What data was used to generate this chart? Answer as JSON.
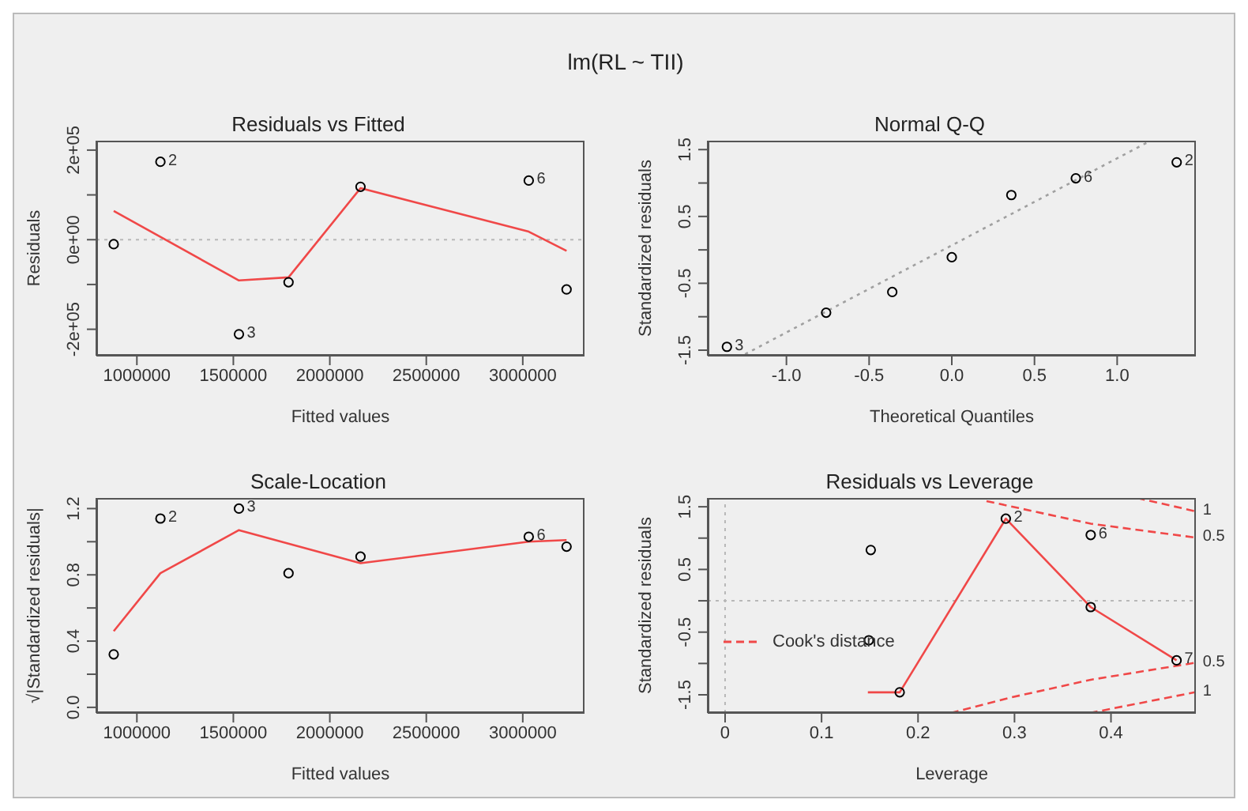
{
  "chart_data": [
    {
      "type": "scatter",
      "title": "Residuals vs Fitted",
      "xlabel": "Fitted values",
      "ylabel": "Residuals",
      "annotations": [
        "lm(RL ~ TII)",
        {
          "text": "2",
          "x": 1122000,
          "y": 174000
        },
        {
          "text": "3",
          "x": 1529000,
          "y": -211000
        },
        {
          "text": "6",
          "x": 3031000,
          "y": 132000
        }
      ],
      "xlim": [
        790000,
        3320000
      ],
      "xticks": [
        1000000,
        1500000,
        2000000,
        2500000,
        3000000
      ],
      "ylim": [
        -259000,
        221000
      ],
      "yticks": [
        {
          "value": -200000,
          "label": "-2e+05"
        },
        {
          "value": -100000,
          "label": null
        },
        {
          "value": 0,
          "label": "0e+00"
        },
        {
          "value": 100000,
          "label": null
        },
        {
          "value": 200000,
          "label": "2e+05"
        }
      ],
      "ref_lines": [
        {
          "axis": "y",
          "value": 0,
          "color": "#b8b8b8",
          "line_style": "dotted"
        }
      ],
      "series": [
        {
          "marker": "circle",
          "color": "#000000",
          "x": [
            880000,
            1122000,
            1529000,
            1786000,
            2159000,
            3031000,
            3227000
          ],
          "values": [
            -10000,
            174000,
            -211000,
            -95000,
            118000,
            132000,
            -111000
          ]
        },
        {
          "type": "line",
          "color": "#f04848",
          "x": [
            880000,
            1529000,
            1786000,
            2159000,
            3031000,
            3227000
          ],
          "values": [
            64000,
            -91000,
            -84000,
            115000,
            18000,
            -25000
          ]
        }
      ]
    },
    {
      "type": "scatter",
      "title": "Normal Q-Q",
      "xlabel": "Theoretical Quantiles",
      "ylabel": "Standardized residuals",
      "annotations": [
        {
          "text": "3",
          "x": -1.36,
          "y": -1.45
        },
        {
          "text": "6",
          "x": 0.75,
          "y": 1.07
        },
        {
          "text": "2",
          "x": 1.36,
          "y": 1.31
        }
      ],
      "xlim": [
        -1.476,
        1.476
      ],
      "xticks": [
        {
          "value": -1,
          "label": "-1.0"
        },
        -0.5,
        {
          "value": 0,
          "label": "0.0"
        },
        0.5,
        {
          "value": 1,
          "label": "1.0"
        }
      ],
      "ylim": [
        -1.583,
        1.633
      ],
      "yticks": [
        -1.5,
        {
          "value": -1,
          "label": null
        },
        -0.5,
        {
          "value": 0,
          "label": null
        },
        0.5,
        {
          "value": 1,
          "label": null
        },
        1.5
      ],
      "series": [
        {
          "marker": "circle",
          "color": "#000000",
          "x": [
            -1.36,
            -0.76,
            -0.36,
            0,
            0.36,
            0.75,
            1.36
          ],
          "values": [
            -1.45,
            -0.94,
            -0.63,
            -0.11,
            0.82,
            1.07,
            1.31
          ]
        },
        {
          "type": "line",
          "color": "#a0a0a0",
          "line_style": "dotted",
          "x": [
            -1.25,
            1.2
          ],
          "values": [
            -1.56,
            1.63
          ]
        }
      ]
    },
    {
      "type": "scatter",
      "title": "Scale-Location",
      "xlabel": "Fitted values",
      "ylabel": "√|Standardized residuals|",
      "annotations": [
        {
          "text": "2",
          "x": 1122000,
          "y": 1.14
        },
        {
          "text": "3",
          "x": 1529000,
          "y": 1.2
        },
        {
          "text": "6",
          "x": 3031000,
          "y": 1.03
        }
      ],
      "xlim": [
        790000,
        3320000
      ],
      "xticks": [
        1000000,
        1500000,
        2000000,
        2500000,
        3000000
      ],
      "ylim": [
        -0.034,
        1.264
      ],
      "yticks": [
        {
          "value": 0,
          "label": "0.0"
        },
        {
          "value": 0.2,
          "label": null
        },
        0.4,
        {
          "value": 0.6,
          "label": null
        },
        0.8,
        {
          "value": 1.0,
          "label": null
        },
        1.2
      ],
      "series": [
        {
          "marker": "circle",
          "color": "#000000",
          "x": [
            880000,
            1122000,
            1529000,
            1786000,
            2159000,
            3031000,
            3227000
          ],
          "values": [
            0.32,
            1.14,
            1.2,
            0.81,
            0.91,
            1.03,
            0.97
          ]
        },
        {
          "type": "line",
          "color": "#f04848",
          "x": [
            880000,
            1122000,
            1529000,
            2159000,
            3031000,
            3227000
          ],
          "values": [
            0.46,
            0.81,
            1.07,
            0.87,
            1.0,
            1.01
          ]
        }
      ]
    },
    {
      "type": "scatter",
      "title": "Residuals vs Leverage",
      "xlabel": "Leverage",
      "ylabel": "Standardized residuals",
      "legend": "left",
      "annotations": [
        {
          "text": "2",
          "x": 0.291,
          "y": 1.31
        },
        {
          "text": "6",
          "x": 0.379,
          "y": 1.05
        },
        {
          "text": "7",
          "x": 0.468,
          "y": -0.95
        },
        {
          "text": "1",
          "x": 0.487,
          "y": 1.43
        },
        {
          "text": "0.5",
          "x": 0.487,
          "y": 1.01
        },
        {
          "text": "0.5",
          "x": 0.487,
          "y": -0.99
        },
        {
          "text": "1",
          "x": 0.487,
          "y": -1.46
        }
      ],
      "xlim": [
        -0.018,
        0.488
      ],
      "xticks": [
        0.0,
        0.1,
        0.2,
        0.3,
        0.4
      ],
      "ylim": [
        -1.79,
        1.64
      ],
      "yticks": [
        -1.5,
        {
          "value": -1,
          "label": null
        },
        -0.5,
        {
          "value": 0,
          "label": null
        },
        0.5,
        {
          "value": 1,
          "label": null
        },
        1.5
      ],
      "ref_lines": [
        {
          "axis": "y",
          "value": 0,
          "color": "#b8b8b8",
          "line_style": "dotted"
        },
        {
          "axis": "x",
          "value": 0,
          "color": "#b8b8b8",
          "line_style": "dotted"
        }
      ],
      "series": [
        {
          "marker": "circle",
          "color": "#000000",
          "x": [
            0.379,
            0.291,
            0.181,
            0.149,
            0.151,
            0.379,
            0.468
          ],
          "values": [
            -0.1,
            1.31,
            -1.46,
            -0.63,
            0.81,
            1.05,
            -0.95
          ]
        },
        {
          "type": "line",
          "color": "#f04848",
          "x": [
            0.148,
            0.181,
            0.291,
            0.379,
            0.468
          ],
          "values": [
            -1.46,
            -1.46,
            1.31,
            -0.1,
            -0.95
          ]
        },
        {
          "type": "line",
          "name": "Cook's distance",
          "color": "#f04848",
          "line_style": "dashed",
          "x": [
            0.271,
            0.379,
            0.487
          ],
          "values": [
            1.59,
            1.23,
            1.01
          ]
        },
        {
          "type": "line",
          "color": "#f04848",
          "line_style": "dashed",
          "x": [
            0.427,
            0.487
          ],
          "values": [
            1.64,
            1.43
          ]
        },
        {
          "type": "line",
          "color": "#f04848",
          "line_style": "dashed",
          "x": [
            0.234,
            0.297,
            0.379,
            0.487
          ],
          "values": [
            -1.79,
            -1.54,
            -1.26,
            -0.99
          ]
        },
        {
          "type": "line",
          "color": "#f04848",
          "line_style": "dashed",
          "x": [
            0.378,
            0.487
          ],
          "values": [
            -1.79,
            -1.46
          ]
        }
      ]
    }
  ]
}
